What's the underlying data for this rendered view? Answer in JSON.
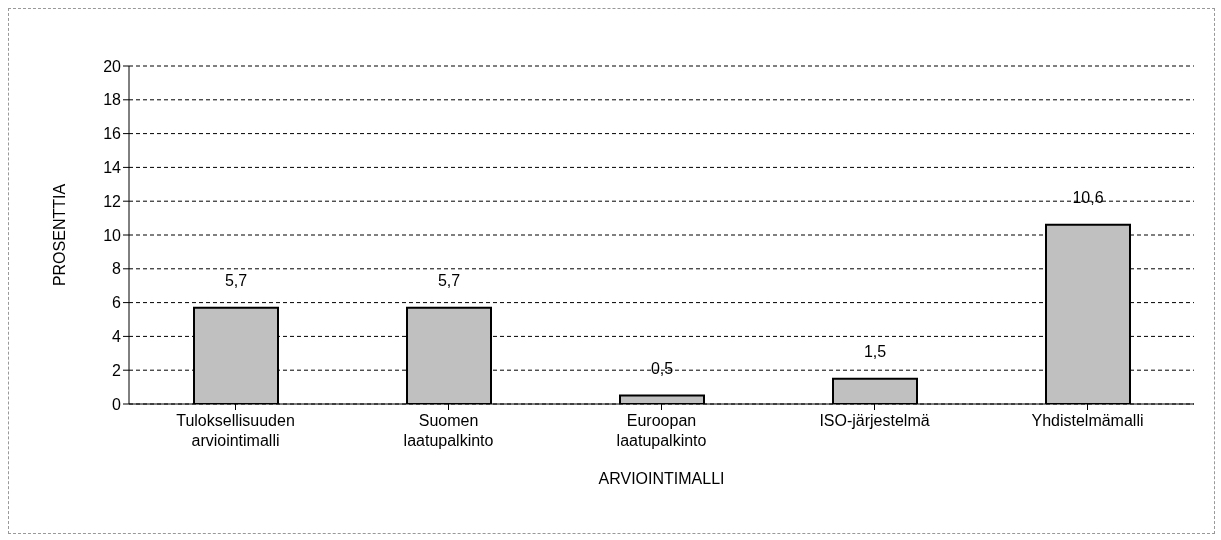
{
  "chart_data": {
    "type": "bar",
    "xlabel": "ARVIOINTIMALLI",
    "ylabel": "PROSENTTIA",
    "categories": [
      "Tuloksellisuuden arviointimalli",
      "Suomen laatupalkinto",
      "Euroopan laatupalkinto",
      "ISO-järjestelmä",
      "Yhdistelmämalli"
    ],
    "values": [
      5.7,
      5.7,
      0.5,
      1.5,
      10.6
    ],
    "value_labels": [
      "5,7",
      "5,7",
      "0,5",
      "1,5",
      "10,6"
    ],
    "color": "#c0c0c0",
    "ylim": [
      0,
      20
    ],
    "yticks": [
      0,
      2,
      4,
      6,
      8,
      10,
      12,
      14,
      16,
      18,
      20
    ],
    "grid": "y"
  }
}
